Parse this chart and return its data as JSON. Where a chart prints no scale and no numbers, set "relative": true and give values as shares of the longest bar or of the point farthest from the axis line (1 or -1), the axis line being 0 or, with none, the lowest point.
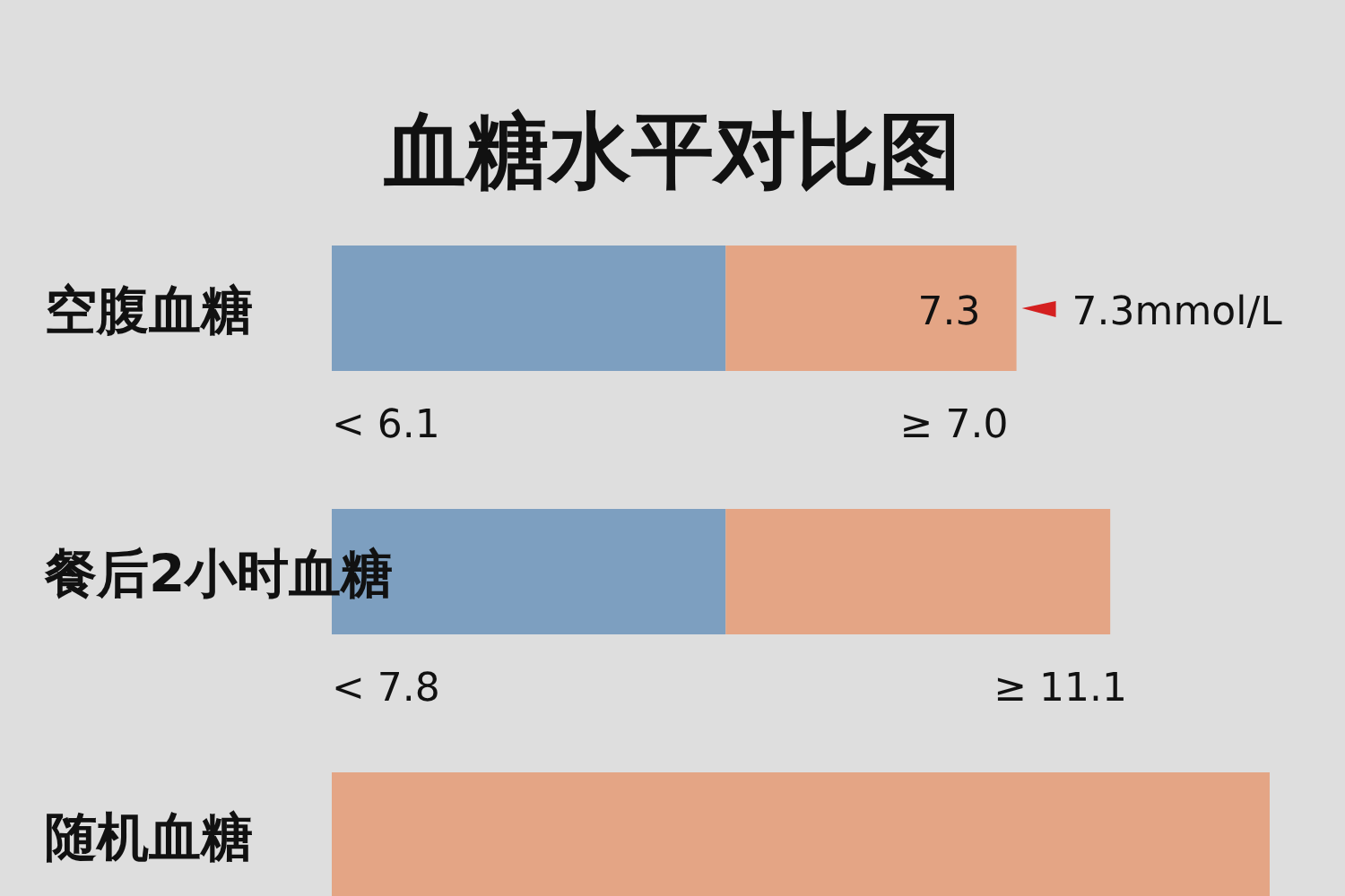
{
  "chart_data": {
    "type": "bar",
    "orientation": "horizontal",
    "stacked": true,
    "relative": true,
    "title": "血糖水平对比图",
    "categories": [
      "空腹血糖",
      "餐后2小时血糖",
      "随机血糖"
    ],
    "series": [
      {
        "color": "#7d9fc0",
        "values": [
          0.42,
          0.42,
          0
        ]
      },
      {
        "color": "#e4a585",
        "values": [
          0.31,
          0.41,
          1
        ]
      }
    ],
    "annotations": [
      "7.3",
      "7.3mmol/L",
      "< 6.1",
      "≥ 7.0",
      "< 7.8",
      "≥ 11.1"
    ]
  }
}
